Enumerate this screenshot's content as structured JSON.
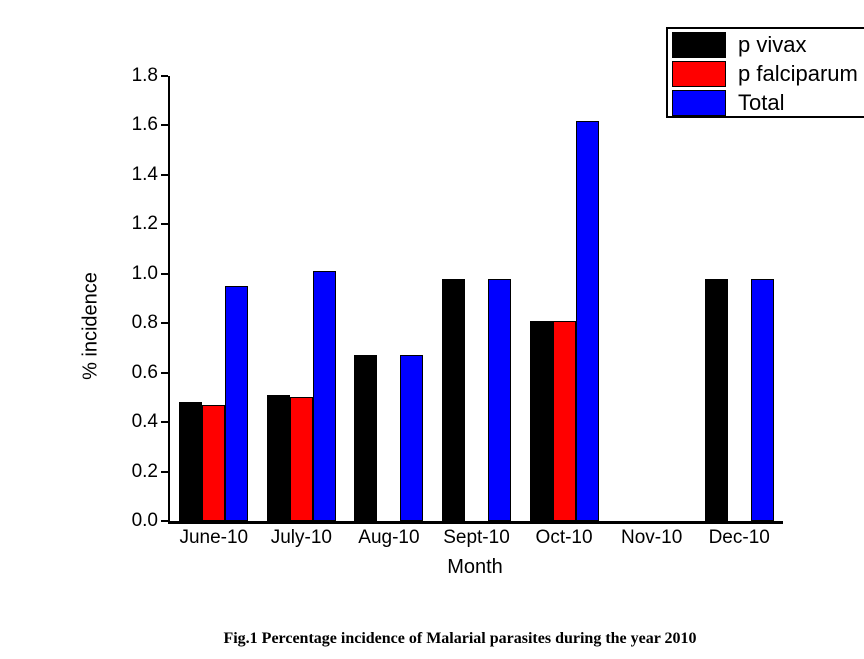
{
  "figure": {
    "caption": "Fig.1 Percentage incidence of Malarial parasites during the year 2010"
  },
  "chart_data": {
    "type": "bar",
    "title": "",
    "xlabel": "Month",
    "ylabel": "% incidence",
    "categories": [
      "June-10",
      "July-10",
      "Aug-10",
      "Sept-10",
      "Oct-10",
      "Nov-10",
      "Dec-10"
    ],
    "series": [
      {
        "name": "p vivax",
        "color": "#000000",
        "values": [
          0.48,
          0.51,
          0.67,
          0.98,
          0.81,
          0,
          0.98
        ]
      },
      {
        "name": "p falciparum",
        "color": "#ff0000",
        "values": [
          0.47,
          0.5,
          0,
          0,
          0.81,
          0,
          0
        ]
      },
      {
        "name": "Total",
        "color": "#0000ff",
        "values": [
          0.95,
          1.01,
          0.67,
          0.98,
          1.62,
          0,
          0.98
        ]
      }
    ],
    "ylim": [
      0,
      1.8
    ],
    "yticks": [
      "0.0",
      "0.2",
      "0.4",
      "0.6",
      "0.8",
      "1.0",
      "1.2",
      "1.4",
      "1.6",
      "1.8"
    ],
    "grid": false,
    "legend_position": "top-right",
    "bar_outline_color": "#000000",
    "background_color": "#ffffff"
  }
}
